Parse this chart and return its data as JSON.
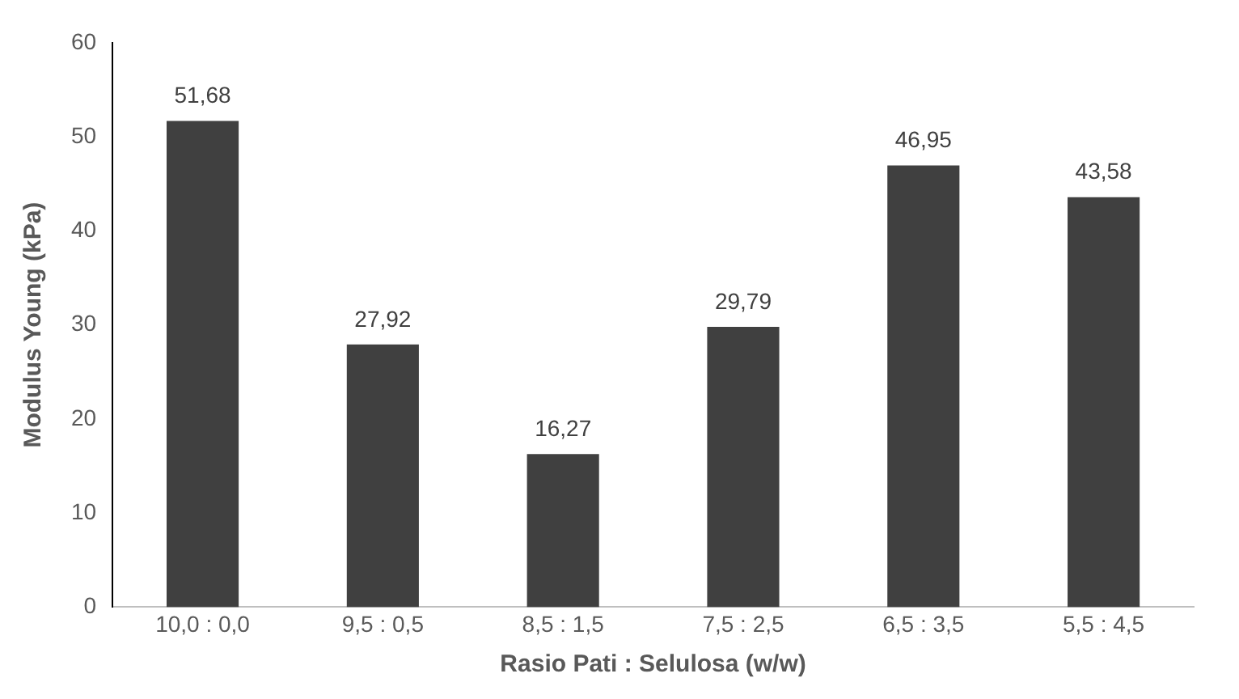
{
  "chart_data": {
    "type": "bar",
    "xlabel": "Rasio Pati : Selulosa (w/w)",
    "ylabel": "Modulus Young (kPa)",
    "categories": [
      "10,0 : 0,0",
      "9,5 : 0,5",
      "8,5 : 1,5",
      "7,5 : 2,5",
      "6,5 : 3,5",
      "5,5 : 4,5"
    ],
    "values": [
      51.68,
      27.92,
      16.27,
      29.79,
      46.95,
      43.58
    ],
    "value_labels": [
      "51,68",
      "27,92",
      "16,27",
      "29,79",
      "46,95",
      "43,58"
    ],
    "color": "#404040",
    "ylim": [
      0,
      60
    ],
    "yticks": [
      0,
      10,
      20,
      30,
      40,
      50,
      60
    ],
    "grid": false,
    "legend": false
  }
}
